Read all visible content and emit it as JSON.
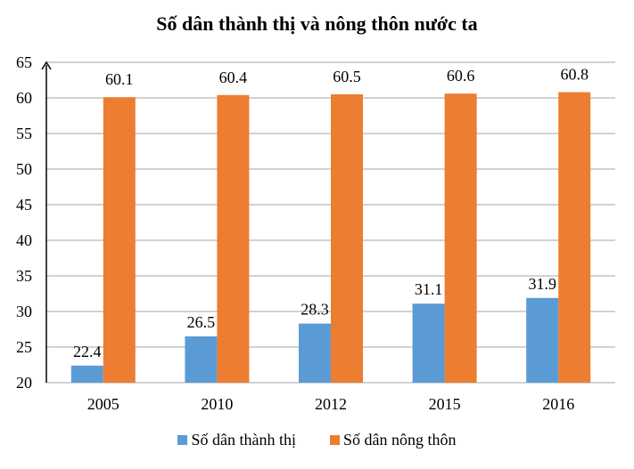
{
  "chart_data": {
    "type": "bar",
    "title": "Số dân thành thị và nông thôn nước ta",
    "xlabel": "",
    "ylabel": "",
    "categories": [
      "2005",
      "2010",
      "2012",
      "2015",
      "2016"
    ],
    "series": [
      {
        "name": "Số dân thành thị",
        "values": [
          22.4,
          26.5,
          28.3,
          31.1,
          31.9
        ],
        "color": "#5B9BD5"
      },
      {
        "name": "Số dân nông thôn",
        "values": [
          60.1,
          60.4,
          60.5,
          60.6,
          60.8
        ],
        "color": "#ED7D31"
      }
    ],
    "ylim": [
      20,
      65
    ],
    "yticks": [
      20,
      25,
      30,
      35,
      40,
      45,
      50,
      55,
      60,
      65
    ],
    "grid": true,
    "data_labels": true,
    "legend": "bottom"
  }
}
